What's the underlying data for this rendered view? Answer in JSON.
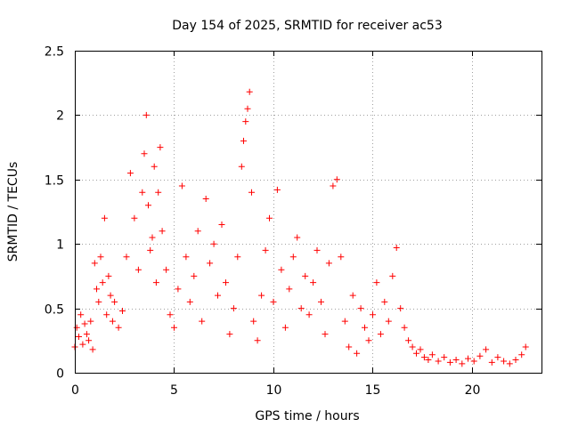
{
  "chart_data": {
    "type": "scatter",
    "title": "Day 154 of 2025, SRMTID for receiver ac53",
    "xlabel": "GPS time / hours",
    "ylabel": "SRMTID / TECUs",
    "xlim": [
      0,
      23.5
    ],
    "ylim": [
      0,
      2.5
    ],
    "xticks": [
      0,
      5,
      10,
      15,
      20
    ],
    "xtick_labels": [
      "0",
      "5",
      "10",
      "15",
      "20"
    ],
    "yticks": [
      0,
      0.5,
      1,
      1.5,
      2,
      2.5
    ],
    "ytick_labels": [
      "0",
      "0.5",
      "1",
      "1.5",
      "2",
      "2.5"
    ],
    "grid": true,
    "marker": "+",
    "point_color": "#ff0000",
    "series": [
      {
        "name": "SRMTID",
        "points": [
          [
            0.0,
            0.2
          ],
          [
            0.1,
            0.35
          ],
          [
            0.2,
            0.28
          ],
          [
            0.3,
            0.45
          ],
          [
            0.4,
            0.22
          ],
          [
            0.5,
            0.38
          ],
          [
            0.6,
            0.3
          ],
          [
            0.7,
            0.25
          ],
          [
            0.8,
            0.4
          ],
          [
            0.9,
            0.18
          ],
          [
            1.0,
            0.85
          ],
          [
            1.1,
            0.65
          ],
          [
            1.2,
            0.55
          ],
          [
            1.3,
            0.9
          ],
          [
            1.4,
            0.7
          ],
          [
            1.5,
            1.2
          ],
          [
            1.6,
            0.45
          ],
          [
            1.7,
            0.75
          ],
          [
            1.8,
            0.6
          ],
          [
            1.9,
            0.4
          ],
          [
            2.0,
            0.55
          ],
          [
            2.2,
            0.35
          ],
          [
            2.4,
            0.48
          ],
          [
            2.6,
            0.9
          ],
          [
            2.8,
            1.55
          ],
          [
            3.0,
            1.2
          ],
          [
            3.2,
            0.8
          ],
          [
            3.4,
            1.4
          ],
          [
            3.5,
            1.7
          ],
          [
            3.6,
            2.0
          ],
          [
            3.7,
            1.3
          ],
          [
            3.8,
            0.95
          ],
          [
            3.9,
            1.05
          ],
          [
            4.0,
            1.6
          ],
          [
            4.1,
            0.7
          ],
          [
            4.2,
            1.4
          ],
          [
            4.3,
            1.75
          ],
          [
            4.4,
            1.1
          ],
          [
            4.6,
            0.8
          ],
          [
            4.8,
            0.45
          ],
          [
            5.0,
            0.35
          ],
          [
            5.2,
            0.65
          ],
          [
            5.4,
            1.45
          ],
          [
            5.6,
            0.9
          ],
          [
            5.8,
            0.55
          ],
          [
            6.0,
            0.75
          ],
          [
            6.2,
            1.1
          ],
          [
            6.4,
            0.4
          ],
          [
            6.6,
            1.35
          ],
          [
            6.8,
            0.85
          ],
          [
            7.0,
            1.0
          ],
          [
            7.2,
            0.6
          ],
          [
            7.4,
            1.15
          ],
          [
            7.6,
            0.7
          ],
          [
            7.8,
            0.3
          ],
          [
            8.0,
            0.5
          ],
          [
            8.2,
            0.9
          ],
          [
            8.4,
            1.6
          ],
          [
            8.5,
            1.8
          ],
          [
            8.6,
            1.95
          ],
          [
            8.7,
            2.05
          ],
          [
            8.8,
            2.18
          ],
          [
            8.9,
            1.4
          ],
          [
            9.0,
            0.4
          ],
          [
            9.2,
            0.25
          ],
          [
            9.4,
            0.6
          ],
          [
            9.6,
            0.95
          ],
          [
            9.8,
            1.2
          ],
          [
            10.0,
            0.55
          ],
          [
            10.2,
            1.42
          ],
          [
            10.4,
            0.8
          ],
          [
            10.6,
            0.35
          ],
          [
            10.8,
            0.65
          ],
          [
            11.0,
            0.9
          ],
          [
            11.2,
            1.05
          ],
          [
            11.4,
            0.5
          ],
          [
            11.6,
            0.75
          ],
          [
            11.8,
            0.45
          ],
          [
            12.0,
            0.7
          ],
          [
            12.2,
            0.95
          ],
          [
            12.4,
            0.55
          ],
          [
            12.6,
            0.3
          ],
          [
            12.8,
            0.85
          ],
          [
            13.0,
            1.45
          ],
          [
            13.2,
            1.5
          ],
          [
            13.4,
            0.9
          ],
          [
            13.6,
            0.4
          ],
          [
            13.8,
            0.2
          ],
          [
            14.0,
            0.6
          ],
          [
            14.2,
            0.15
          ],
          [
            14.4,
            0.5
          ],
          [
            14.6,
            0.35
          ],
          [
            14.8,
            0.25
          ],
          [
            15.0,
            0.45
          ],
          [
            15.2,
            0.7
          ],
          [
            15.4,
            0.3
          ],
          [
            15.6,
            0.55
          ],
          [
            15.8,
            0.4
          ],
          [
            16.0,
            0.75
          ],
          [
            16.2,
            0.97
          ],
          [
            16.4,
            0.5
          ],
          [
            16.6,
            0.35
          ],
          [
            16.8,
            0.25
          ],
          [
            17.0,
            0.2
          ],
          [
            17.2,
            0.15
          ],
          [
            17.4,
            0.18
          ],
          [
            17.6,
            0.12
          ],
          [
            17.8,
            0.1
          ],
          [
            18.0,
            0.14
          ],
          [
            18.3,
            0.09
          ],
          [
            18.6,
            0.12
          ],
          [
            18.9,
            0.08
          ],
          [
            19.2,
            0.1
          ],
          [
            19.5,
            0.07
          ],
          [
            19.8,
            0.11
          ],
          [
            20.1,
            0.09
          ],
          [
            20.4,
            0.13
          ],
          [
            20.7,
            0.18
          ],
          [
            21.0,
            0.08
          ],
          [
            21.3,
            0.12
          ],
          [
            21.6,
            0.09
          ],
          [
            21.9,
            0.07
          ],
          [
            22.2,
            0.1
          ],
          [
            22.5,
            0.14
          ],
          [
            22.7,
            0.2
          ]
        ]
      }
    ]
  }
}
